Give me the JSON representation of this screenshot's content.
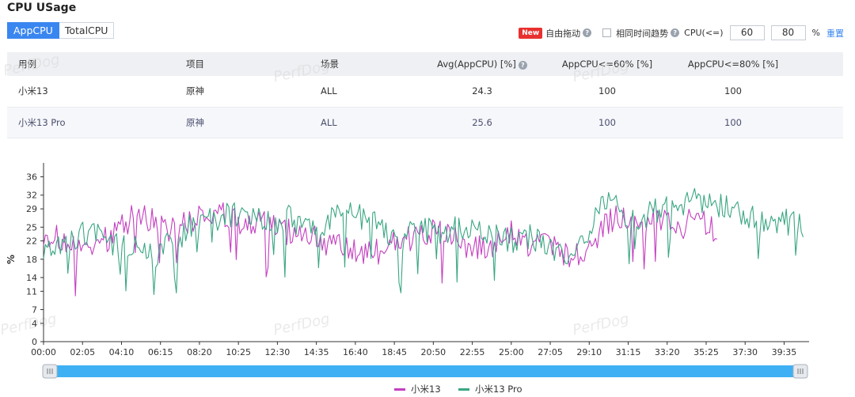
{
  "page_title": "CPU USage",
  "tabs": [
    {
      "label": "AppCPU",
      "active": true
    },
    {
      "label": "TotalCPU",
      "active": false
    }
  ],
  "controls": {
    "new_badge": "New",
    "drag_label": "自由拖动",
    "same_time_label": "相同时间趋势",
    "cpu_label": "CPU(<=)",
    "threshold1": "60",
    "threshold2": "80",
    "pct_label": "%",
    "reset_label": "重置"
  },
  "table": {
    "headers": [
      "用例",
      "项目",
      "场景",
      "Avg(AppCPU) [%]",
      "AppCPU<=60% [%]",
      "AppCPU<=80% [%]"
    ],
    "rows": [
      [
        "小米13",
        "原神",
        "ALL",
        "24.3",
        "100",
        "100"
      ],
      [
        "小米13 Pro",
        "原神",
        "ALL",
        "25.6",
        "100",
        "100"
      ]
    ]
  },
  "watermark": "PerfDog",
  "colors": {
    "accent": "#3a86f0",
    "series1": "#c43fc0",
    "series2": "#3aa683"
  },
  "chart_data": {
    "type": "line",
    "title": "",
    "ylabel": "%",
    "ylim": [
      0,
      38
    ],
    "yticks": [
      "0",
      "4",
      "7",
      "11",
      "14",
      "18",
      "22",
      "25",
      "29",
      "32",
      "36"
    ],
    "xticks": [
      "00:00",
      "02:05",
      "04:10",
      "06:15",
      "08:20",
      "10:25",
      "12:30",
      "14:35",
      "16:40",
      "18:45",
      "20:50",
      "22:55",
      "25:00",
      "27:05",
      "29:10",
      "31:15",
      "33:20",
      "35:25",
      "37:30",
      "39:35"
    ],
    "x_unit": "mm:ss",
    "legend": "bottom",
    "series": [
      {
        "name": "小米13",
        "x": [
          "00:00",
          "01:00",
          "02:00",
          "03:00",
          "04:00",
          "05:00",
          "06:00",
          "07:00",
          "08:00",
          "09:00",
          "10:00",
          "11:00",
          "12:00",
          "13:00",
          "14:00",
          "15:00",
          "16:00",
          "17:00",
          "18:00",
          "19:00",
          "20:00",
          "21:00",
          "22:00",
          "23:00",
          "24:00",
          "25:00",
          "26:00",
          "27:00",
          "28:00",
          "29:00",
          "30:00",
          "31:00",
          "32:00",
          "33:00",
          "34:00",
          "35:00",
          "36:00"
        ],
        "values": [
          24,
          22,
          20,
          21,
          25,
          28,
          26,
          24,
          27,
          28,
          27,
          25,
          26,
          24,
          24,
          22,
          20,
          19,
          20,
          22,
          23,
          24,
          23,
          20,
          21,
          24,
          21,
          22,
          19,
          18,
          26,
          28,
          26,
          27,
          25,
          27,
          24
        ]
      },
      {
        "name": "小米13 Pro",
        "x": [
          "00:00",
          "01:00",
          "02:00",
          "03:00",
          "04:00",
          "05:00",
          "06:00",
          "07:00",
          "08:00",
          "09:00",
          "10:00",
          "11:00",
          "12:00",
          "13:00",
          "14:00",
          "15:00",
          "16:00",
          "17:00",
          "18:00",
          "19:00",
          "20:00",
          "21:00",
          "22:00",
          "23:00",
          "24:00",
          "25:00",
          "26:00",
          "27:00",
          "28:00",
          "29:00",
          "30:00",
          "31:00",
          "32:00",
          "33:00",
          "34:00",
          "35:00",
          "36:00",
          "37:00",
          "38:00",
          "39:00",
          "40:00",
          "40:40"
        ],
        "values": [
          21,
          22,
          23,
          24,
          21,
          20,
          19,
          22,
          26,
          27,
          28,
          27,
          26,
          27,
          25,
          26,
          28,
          27,
          26,
          22,
          25,
          24,
          25,
          24,
          23,
          22,
          23,
          21,
          17,
          22,
          31,
          28,
          27,
          29,
          30,
          31,
          30,
          28,
          27,
          26,
          26,
          25
        ]
      }
    ]
  }
}
